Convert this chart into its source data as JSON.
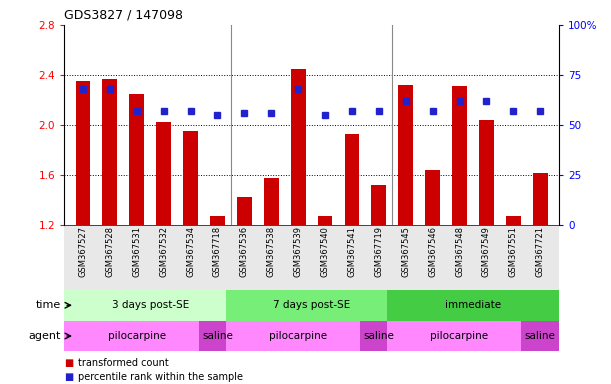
{
  "title": "GDS3827 / 147098",
  "samples": [
    "GSM367527",
    "GSM367528",
    "GSM367531",
    "GSM367532",
    "GSM367534",
    "GSM367718",
    "GSM367536",
    "GSM367538",
    "GSM367539",
    "GSM367540",
    "GSM367541",
    "GSM367719",
    "GSM367545",
    "GSM367546",
    "GSM367548",
    "GSM367549",
    "GSM367551",
    "GSM367721"
  ],
  "red_values": [
    2.35,
    2.37,
    2.25,
    2.02,
    1.95,
    1.27,
    1.42,
    1.57,
    2.45,
    1.27,
    1.93,
    1.52,
    2.32,
    1.64,
    2.31,
    2.04,
    1.27,
    1.61
  ],
  "blue_values": [
    68,
    68,
    57,
    57,
    57,
    55,
    56,
    56,
    68,
    55,
    57,
    57,
    62,
    57,
    62,
    62,
    57,
    57
  ],
  "ylim_left": [
    1.2,
    2.8
  ],
  "ylim_right": [
    0,
    100
  ],
  "yticks_left": [
    1.2,
    1.6,
    2.0,
    2.4,
    2.8
  ],
  "yticks_right": [
    0,
    25,
    50,
    75,
    100
  ],
  "bar_bottom": 1.2,
  "bar_color": "#cc0000",
  "dot_color": "#2222cc",
  "gridlines": [
    1.6,
    2.0,
    2.4
  ],
  "group_separators": [
    5.5,
    11.5
  ],
  "time_groups": [
    {
      "label": "3 days post-SE",
      "start": 0,
      "end": 6,
      "color": "#ccffcc"
    },
    {
      "label": "7 days post-SE",
      "start": 6,
      "end": 12,
      "color": "#77ee77"
    },
    {
      "label": "immediate",
      "start": 12,
      "end": 18,
      "color": "#44cc44"
    }
  ],
  "agent_groups": [
    {
      "label": "pilocarpine",
      "start": 0,
      "end": 5,
      "color": "#ff88ff"
    },
    {
      "label": "saline",
      "start": 5,
      "end": 6,
      "color": "#cc44cc"
    },
    {
      "label": "pilocarpine",
      "start": 6,
      "end": 11,
      "color": "#ff88ff"
    },
    {
      "label": "saline",
      "start": 11,
      "end": 12,
      "color": "#cc44cc"
    },
    {
      "label": "pilocarpine",
      "start": 12,
      "end": 17,
      "color": "#ff88ff"
    },
    {
      "label": "saline",
      "start": 17,
      "end": 18,
      "color": "#cc44cc"
    }
  ],
  "legend": [
    {
      "label": "transformed count",
      "color": "#cc0000"
    },
    {
      "label": "percentile rank within the sample",
      "color": "#2222cc"
    }
  ],
  "xlabel_bg": "#e8e8e8"
}
